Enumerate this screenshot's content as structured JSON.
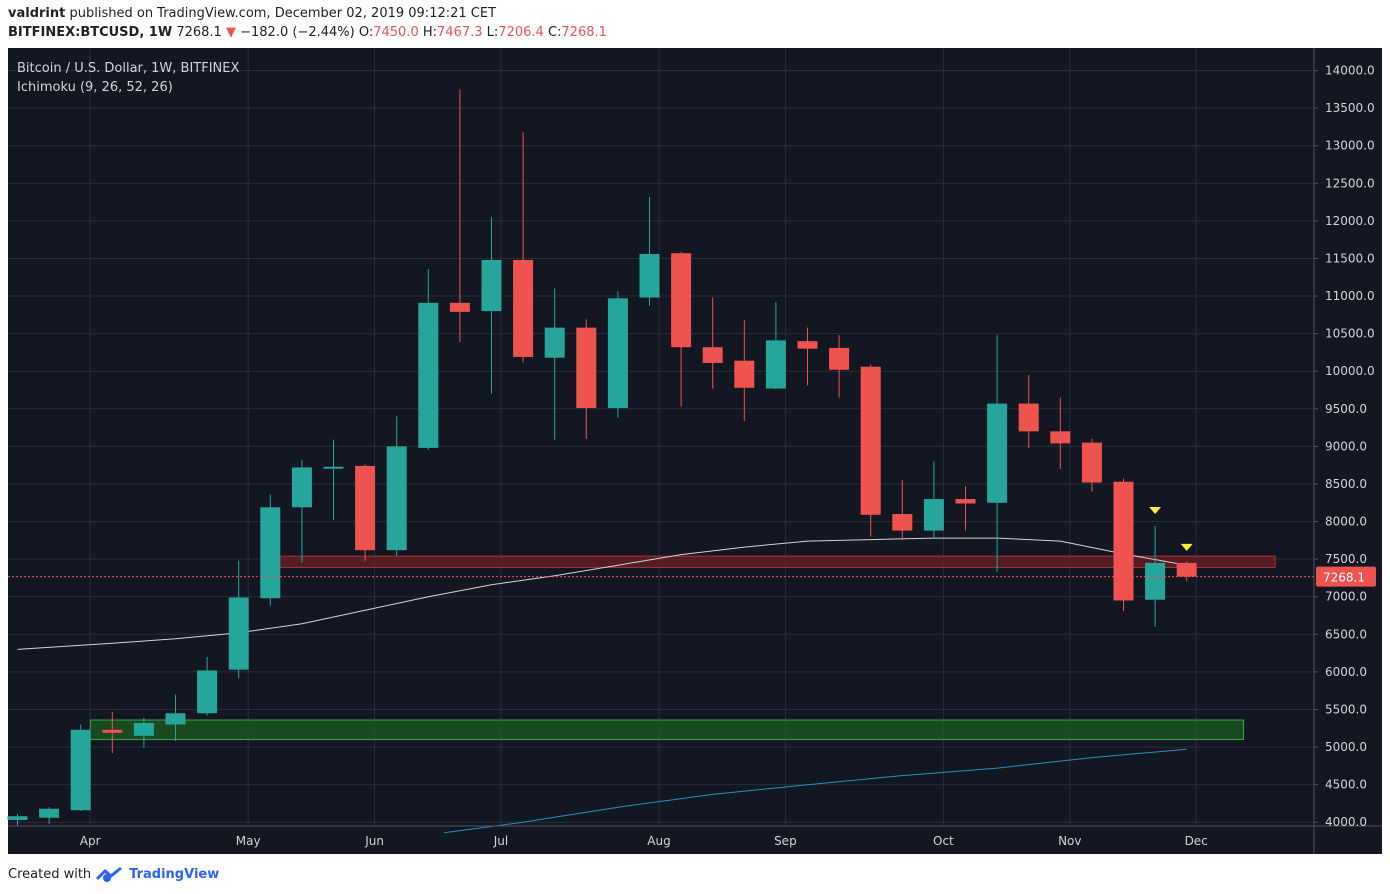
{
  "header": {
    "author": "valdrint",
    "published_text": "published on TradingView.com, December 02, 2019 09:12:21 CET"
  },
  "symbol_bar": {
    "symbol": "BITFINEX:BTCUSD, 1W",
    "last": "7268.1",
    "arrow": "▼",
    "change": "−182.0 (−2.44%)",
    "o_label": "O:",
    "o_value": "7450.0",
    "h_label": "H:",
    "h_value": "7467.3",
    "l_label": "L:",
    "l_value": "7206.4",
    "c_label": "C:",
    "c_value": "7268.1"
  },
  "footer": {
    "created_with": "Created with",
    "brand": "TradingView"
  },
  "colors": {
    "background": "#131722",
    "grid": "#2a2e39",
    "up": "#26a69a",
    "down": "#ef5350",
    "ma": "#d1d4dc",
    "ma_long": "#2f8bbb",
    "support_zone": "#1b5e20",
    "resistance_zone": "#6b1d26",
    "marker": "#ffeb3b",
    "axis_text": "#d1d4dc"
  },
  "chart_data": {
    "type": "candlestick",
    "title": "Bitcoin / U.S. Dollar, 1W, BITFINEX",
    "indicator": "Ichimoku (9, 26, 52, 26)",
    "last_price_label": "7268.1",
    "last_price": 7268.1,
    "ylim": [
      3950,
      14300
    ],
    "y_ticks": [
      4000,
      4500,
      5000,
      5500,
      6000,
      6500,
      7000,
      7500,
      8000,
      8500,
      9000,
      9500,
      10000,
      10500,
      11000,
      11500,
      12000,
      12500,
      13000,
      13500,
      14000
    ],
    "y_tick_labels": [
      "4000.0",
      "4500.0",
      "5000.0",
      "5500.0",
      "6000.0",
      "6500.0",
      "7000.0",
      "7500.0",
      "8000.0",
      "8500.0",
      "9000.0",
      "9500.0",
      "10000.0",
      "10500.0",
      "11000.0",
      "11500.0",
      "12000.0",
      "12500.0",
      "13000.0",
      "13500.0",
      "14000.0"
    ],
    "x_ticks": [
      {
        "label": "Apr",
        "week": 2.3
      },
      {
        "label": "May",
        "week": 7.3
      },
      {
        "label": "Jun",
        "week": 11.3
      },
      {
        "label": "Jul",
        "week": 15.3
      },
      {
        "label": "Aug",
        "week": 20.3
      },
      {
        "label": "Sep",
        "week": 24.3
      },
      {
        "label": "Oct",
        "week": 29.3
      },
      {
        "label": "Nov",
        "week": 33.3
      },
      {
        "label": "Dec",
        "week": 37.3
      }
    ],
    "candles": [
      {
        "o": 4030,
        "h": 4110,
        "l": 3950,
        "c": 4080
      },
      {
        "o": 4060,
        "h": 4200,
        "l": 3980,
        "c": 4180
      },
      {
        "o": 4160,
        "h": 5300,
        "l": 4150,
        "c": 5230
      },
      {
        "o": 5230,
        "h": 5470,
        "l": 4920,
        "c": 5190
      },
      {
        "o": 5150,
        "h": 5390,
        "l": 4990,
        "c": 5320
      },
      {
        "o": 5300,
        "h": 5700,
        "l": 5080,
        "c": 5450
      },
      {
        "o": 5450,
        "h": 6200,
        "l": 5420,
        "c": 6020
      },
      {
        "o": 6030,
        "h": 7480,
        "l": 5920,
        "c": 6990
      },
      {
        "o": 6980,
        "h": 8360,
        "l": 6880,
        "c": 8190
      },
      {
        "o": 8190,
        "h": 8820,
        "l": 7450,
        "c": 8720
      },
      {
        "o": 8730,
        "h": 9090,
        "l": 8020,
        "c": 8730
      },
      {
        "o": 8740,
        "h": 8760,
        "l": 7480,
        "c": 7620
      },
      {
        "o": 7620,
        "h": 9400,
        "l": 7540,
        "c": 9000
      },
      {
        "o": 8980,
        "h": 11360,
        "l": 8950,
        "c": 10910
      },
      {
        "o": 10910,
        "h": 13750,
        "l": 10390,
        "c": 10790
      },
      {
        "o": 10800,
        "h": 12050,
        "l": 9700,
        "c": 11480
      },
      {
        "o": 11480,
        "h": 13180,
        "l": 10120,
        "c": 10190
      },
      {
        "o": 10180,
        "h": 11100,
        "l": 9090,
        "c": 10580
      },
      {
        "o": 10580,
        "h": 10690,
        "l": 9100,
        "c": 9510
      },
      {
        "o": 9510,
        "h": 11060,
        "l": 9380,
        "c": 10970
      },
      {
        "o": 10980,
        "h": 12320,
        "l": 10870,
        "c": 11560
      },
      {
        "o": 11570,
        "h": 11590,
        "l": 9530,
        "c": 10320
      },
      {
        "o": 10320,
        "h": 10980,
        "l": 9770,
        "c": 10110
      },
      {
        "o": 10140,
        "h": 10680,
        "l": 9340,
        "c": 9780
      },
      {
        "o": 9770,
        "h": 10920,
        "l": 9760,
        "c": 10410
      },
      {
        "o": 10400,
        "h": 10580,
        "l": 9810,
        "c": 10300
      },
      {
        "o": 10310,
        "h": 10480,
        "l": 9650,
        "c": 10020
      },
      {
        "o": 10060,
        "h": 10090,
        "l": 7800,
        "c": 8090
      },
      {
        "o": 8100,
        "h": 8550,
        "l": 7750,
        "c": 7880
      },
      {
        "o": 7880,
        "h": 8800,
        "l": 7770,
        "c": 8300
      },
      {
        "o": 8300,
        "h": 8470,
        "l": 7880,
        "c": 8240
      },
      {
        "o": 8250,
        "h": 10480,
        "l": 7330,
        "c": 9570
      },
      {
        "o": 9570,
        "h": 9950,
        "l": 8980,
        "c": 9200
      },
      {
        "o": 9200,
        "h": 9650,
        "l": 8700,
        "c": 9040
      },
      {
        "o": 9050,
        "h": 9100,
        "l": 8400,
        "c": 8520
      },
      {
        "o": 8530,
        "h": 8570,
        "l": 6810,
        "c": 6950
      },
      {
        "o": 6960,
        "h": 7940,
        "l": 6600,
        "c": 7450
      },
      {
        "o": 7450,
        "h": 7467.3,
        "l": 7206.4,
        "c": 7268.1
      }
    ],
    "ma_short": [
      [
        0,
        6300
      ],
      [
        3,
        6380
      ],
      [
        5,
        6440
      ],
      [
        7,
        6520
      ],
      [
        9,
        6640
      ],
      [
        11,
        6820
      ],
      [
        13,
        7000
      ],
      [
        15,
        7160
      ],
      [
        17,
        7280
      ],
      [
        19,
        7420
      ],
      [
        21,
        7560
      ],
      [
        23,
        7660
      ],
      [
        25,
        7740
      ],
      [
        27,
        7760
      ],
      [
        29,
        7780
      ],
      [
        31,
        7780
      ],
      [
        33,
        7740
      ],
      [
        35,
        7570
      ],
      [
        37,
        7420
      ]
    ],
    "ma_long": [
      [
        13.5,
        3860
      ],
      [
        16,
        4000
      ],
      [
        19,
        4200
      ],
      [
        22,
        4370
      ],
      [
        25,
        4500
      ],
      [
        28,
        4620
      ],
      [
        31,
        4720
      ],
      [
        34,
        4860
      ],
      [
        37,
        4970
      ]
    ],
    "zones": [
      {
        "name": "resistance",
        "x0": 8.3,
        "x1": 39.8,
        "y0": 7390,
        "y1": 7540
      },
      {
        "name": "support",
        "x0": 2.3,
        "x1": 38.8,
        "y0": 5100,
        "y1": 5360
      }
    ],
    "markers": [
      {
        "week": 36,
        "price": 8140
      },
      {
        "week": 37,
        "price": 7650
      }
    ]
  }
}
